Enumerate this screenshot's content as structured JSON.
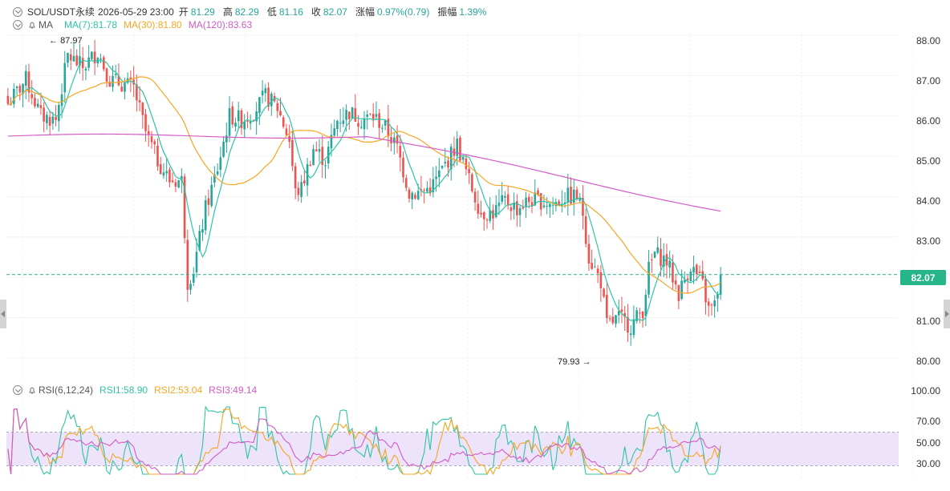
{
  "header": {
    "symbol": "SOL/USDT永续",
    "datetime": "2026-05-29 23:00",
    "open_label": "开",
    "open": "81.29",
    "high_label": "高",
    "high": "82.29",
    "low_label": "低",
    "low": "81.16",
    "close_label": "收",
    "close": "82.07",
    "change_label": "涨幅",
    "change": "0.97%(0.79)",
    "amp_label": "振幅",
    "amp": "1.39%"
  },
  "ma_legend": {
    "name": "MA",
    "ma7": "MA(7):81.78",
    "ma30": "MA(30):81.80",
    "ma120": "MA(120):83.63"
  },
  "rsi_legend": {
    "name": "RSI(6,12,24)",
    "rsi1": "RSI1:58.90",
    "rsi2": "RSI2:53.04",
    "rsi3": "RSI3:49.14"
  },
  "price_axis": [
    "88.00",
    "87.00",
    "86.00",
    "85.00",
    "84.00",
    "83.00",
    "81.00",
    "80.00"
  ],
  "rsi_axis": [
    "100.00",
    "70.00",
    "50.00",
    "30.00"
  ],
  "current_price": "82.07",
  "high_marker": "87.97",
  "low_marker": "79.93",
  "colors": {
    "up": "#26a69a",
    "down": "#ef5350",
    "ma7": "#2ec4a5",
    "ma30": "#f5a623",
    "ma120": "#d25bc6",
    "rsi1": "#2ec4a5",
    "rsi2": "#f5a623",
    "rsi3": "#d25bc6",
    "rsi_band": "#ede3fb"
  },
  "chart_data": {
    "type": "candlestick",
    "price_ylim": [
      79.9,
      88.0
    ],
    "rsi_ylim": [
      20,
      100
    ],
    "ohlc_anchors": [
      [
        0,
        86.3
      ],
      [
        6,
        86.9
      ],
      [
        11,
        86.0
      ],
      [
        16,
        85.9
      ],
      [
        20,
        87.5
      ],
      [
        25,
        87.2
      ],
      [
        30,
        87.6
      ],
      [
        34,
        86.9
      ],
      [
        38,
        86.8
      ],
      [
        42,
        86.7
      ],
      [
        46,
        85.6
      ],
      [
        50,
        84.9
      ],
      [
        54,
        84.4
      ],
      [
        58,
        84.4
      ],
      [
        60,
        81.9
      ],
      [
        62,
        82.2
      ],
      [
        66,
        83.7
      ],
      [
        70,
        84.7
      ],
      [
        74,
        86.0
      ],
      [
        78,
        85.9
      ],
      [
        82,
        86.1
      ],
      [
        86,
        86.5
      ],
      [
        90,
        86.2
      ],
      [
        94,
        85.4
      ],
      [
        96,
        84.1
      ],
      [
        98,
        84.2
      ],
      [
        102,
        85.2
      ],
      [
        106,
        84.9
      ],
      [
        110,
        85.9
      ],
      [
        114,
        86.1
      ],
      [
        118,
        85.9
      ],
      [
        122,
        86.0
      ],
      [
        126,
        85.7
      ],
      [
        130,
        85.2
      ],
      [
        134,
        84.1
      ],
      [
        138,
        84.1
      ],
      [
        142,
        84.3
      ],
      [
        146,
        84.8
      ],
      [
        150,
        85.3
      ],
      [
        154,
        84.4
      ],
      [
        158,
        83.6
      ],
      [
        162,
        83.6
      ],
      [
        166,
        83.9
      ],
      [
        170,
        83.7
      ],
      [
        174,
        83.9
      ],
      [
        178,
        83.9
      ],
      [
        182,
        83.8
      ],
      [
        186,
        84.0
      ],
      [
        190,
        84.0
      ],
      [
        192,
        83.6
      ],
      [
        194,
        82.5
      ],
      [
        198,
        81.9
      ],
      [
        200,
        80.8
      ],
      [
        204,
        81.0
      ],
      [
        208,
        80.8
      ],
      [
        212,
        81.2
      ],
      [
        214,
        82.2
      ],
      [
        216,
        82.6
      ],
      [
        220,
        82.4
      ],
      [
        224,
        81.6
      ],
      [
        228,
        82.3
      ],
      [
        232,
        81.8
      ],
      [
        234,
        81.2
      ],
      [
        236,
        81.3
      ],
      [
        238,
        82.07
      ]
    ]
  }
}
